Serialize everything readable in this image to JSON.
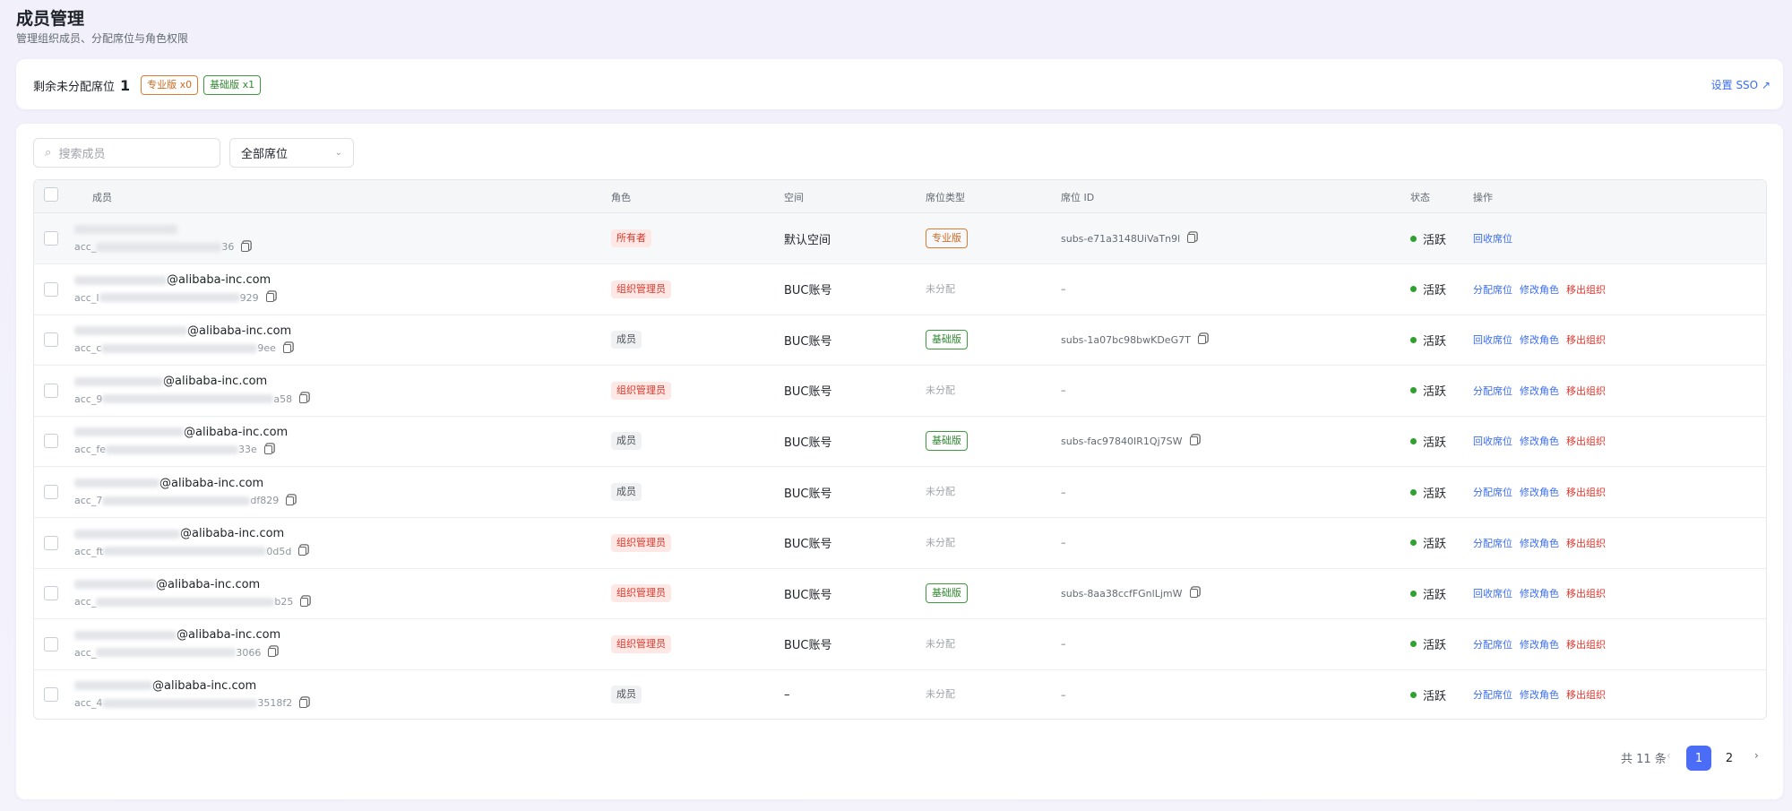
{
  "header": {
    "title": "成员管理",
    "subtitle": "管理组织成员、分配席位与角色权限"
  },
  "seats": {
    "label": "剩余未分配席位",
    "count": "1",
    "tags": [
      "专业版 x0",
      "基础版 x1"
    ],
    "sso": "设置 SSO"
  },
  "toolbar": {
    "search_placeholder": "搜索成员",
    "filter": "全部席位"
  },
  "table": {
    "columns": [
      "成员",
      "角色",
      "空间",
      "席位类型",
      "席位 ID",
      "状态",
      "操作"
    ],
    "rows": [
      {
        "acc_prefix": "acc_",
        "acc_suffix": "36",
        "role": "所有者",
        "space": "默认空间",
        "seat": "专业版",
        "seat_id": "subs-e71a3148UiVaTn9l",
        "status": "活跃",
        "actions": [
          "回收席位"
        ]
      },
      {
        "email": "@alibaba-inc.com",
        "acc_prefix": "acc_I",
        "acc_suffix": "929",
        "role": "组织管理员",
        "space": "BUC账号",
        "seat": "未分配",
        "seat_id": "–",
        "status": "活跃",
        "actions": [
          "分配席位",
          "修改角色",
          "移出组织"
        ]
      },
      {
        "email": "@alibaba-inc.com",
        "acc_prefix": "acc_c",
        "acc_suffix": "9ee",
        "role": "成员",
        "space": "BUC账号",
        "seat": "基础版",
        "seat_id": "subs-1a07bc98bwKDeG7T",
        "status": "活跃",
        "actions": [
          "回收席位",
          "修改角色",
          "移出组织"
        ]
      },
      {
        "email": "@alibaba-inc.com",
        "acc_prefix": "acc_9",
        "acc_suffix": "a58",
        "role": "组织管理员",
        "space": "BUC账号",
        "seat": "未分配",
        "seat_id": "–",
        "status": "活跃",
        "actions": [
          "分配席位",
          "修改角色",
          "移出组织"
        ]
      },
      {
        "email": "@alibaba-inc.com",
        "acc_prefix": "acc_fe",
        "acc_suffix": "33e",
        "role": "成员",
        "space": "BUC账号",
        "seat": "基础版",
        "seat_id": "subs-fac97840IR1Qj7SW",
        "status": "活跃",
        "actions": [
          "回收席位",
          "修改角色",
          "移出组织"
        ]
      },
      {
        "email": "@alibaba-inc.com",
        "acc_prefix": "acc_7",
        "acc_suffix": "df829",
        "role": "成员",
        "space": "BUC账号",
        "seat": "未分配",
        "seat_id": "–",
        "status": "活跃",
        "actions": [
          "分配席位",
          "修改角色",
          "移出组织"
        ]
      },
      {
        "email": "@alibaba-inc.com",
        "acc_prefix": "acc_ft",
        "acc_suffix": "0d5d",
        "role": "组织管理员",
        "space": "BUC账号",
        "seat": "未分配",
        "seat_id": "–",
        "status": "活跃",
        "actions": [
          "分配席位",
          "修改角色",
          "移出组织"
        ]
      },
      {
        "email": "@alibaba-inc.com",
        "acc_prefix": "acc_",
        "acc_suffix": "b25",
        "role": "组织管理员",
        "space": "BUC账号",
        "seat": "基础版",
        "seat_id": "subs-8aa38ccfFGnlLjmW",
        "status": "活跃",
        "actions": [
          "回收席位",
          "修改角色",
          "移出组织"
        ]
      },
      {
        "email": "@alibaba-inc.com",
        "acc_prefix": "acc_",
        "acc_suffix": "3066",
        "role": "组织管理员",
        "space": "BUC账号",
        "seat": "未分配",
        "seat_id": "–",
        "status": "活跃",
        "actions": [
          "分配席位",
          "修改角色",
          "移出组织"
        ]
      },
      {
        "email": "@alibaba-inc.com",
        "acc_prefix": "acc_4",
        "acc_suffix": "3518f2",
        "role": "成员",
        "space": "–",
        "seat": "未分配",
        "seat_id": "–",
        "status": "活跃",
        "actions": [
          "分配席位",
          "修改角色",
          "移出组织"
        ]
      }
    ]
  },
  "pagination": {
    "total": "共 11 条",
    "pages": [
      "1",
      "2"
    ]
  }
}
